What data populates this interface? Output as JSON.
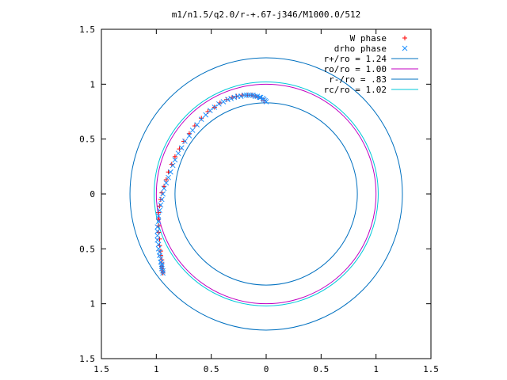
{
  "chart_data": {
    "type": "scatter",
    "title": "m1/n1.5/q2.0/r-+.67-j346/M1000.0/512",
    "xlabel": "",
    "ylabel": "",
    "xlim": [
      -1.5,
      1.5
    ],
    "ylim": [
      -1.5,
      1.5
    ],
    "x_tick_values": [
      -1.5,
      -1,
      -0.5,
      0,
      0.5,
      1,
      1.5
    ],
    "x_tick_labels": [
      "1.5",
      "1",
      "0.5",
      "0",
      "0.5",
      "1",
      "1.5"
    ],
    "y_tick_values": [
      1.5,
      1,
      0.5,
      0,
      -0.5,
      -1,
      -1.5
    ],
    "y_tick_labels": [
      "1.5",
      "1",
      "0.5",
      "0",
      "0.5",
      "1",
      "1.5"
    ],
    "grid": false,
    "legend_position": "top-right",
    "series": [
      {
        "name": "W phase",
        "kind": "points",
        "marker": "plus",
        "color": "#ff0000",
        "x": [
          -0.02,
          -0.04,
          -0.07,
          -0.1,
          -0.13,
          -0.17,
          -0.22,
          -0.27,
          -0.31,
          -0.36,
          -0.42,
          -0.47,
          -0.53,
          -0.59,
          -0.65,
          -0.7,
          -0.75,
          -0.79,
          -0.83,
          -0.86,
          -0.89,
          -0.91,
          -0.93,
          -0.95,
          -0.96,
          -0.97,
          -0.98,
          -0.98,
          -0.98,
          -0.98,
          -0.97,
          -0.97,
          -0.96,
          -0.96,
          -0.95,
          -0.95,
          -0.95,
          -0.95,
          -0.94,
          -0.94
        ],
        "y": [
          0.85,
          0.87,
          0.88,
          0.89,
          0.9,
          0.9,
          0.9,
          0.89,
          0.88,
          0.86,
          0.83,
          0.79,
          0.75,
          0.69,
          0.62,
          0.55,
          0.48,
          0.41,
          0.34,
          0.27,
          0.2,
          0.13,
          0.07,
          0.01,
          -0.05,
          -0.11,
          -0.17,
          -0.23,
          -0.29,
          -0.35,
          -0.41,
          -0.47,
          -0.52,
          -0.56,
          -0.6,
          -0.63,
          -0.66,
          -0.68,
          -0.7,
          -0.72
        ]
      },
      {
        "name": "drho phase",
        "kind": "points",
        "marker": "cross",
        "color": "#1e90ff",
        "x": [
          0,
          -0.01,
          -0.02,
          -0.03,
          -0.05,
          -0.06,
          -0.08,
          -0.1,
          -0.12,
          -0.14,
          -0.16,
          -0.18,
          -0.2,
          -0.23,
          -0.26,
          -0.29,
          -0.32,
          -0.35,
          -0.39,
          -0.43,
          -0.47,
          -0.51,
          -0.55,
          -0.59,
          -0.63,
          -0.67,
          -0.7,
          -0.74,
          -0.77,
          -0.8,
          -0.83,
          -0.85,
          -0.87,
          -0.89,
          -0.91,
          -0.93,
          -0.94,
          -0.95,
          -0.96,
          -0.97,
          -0.98,
          -0.98,
          -0.99,
          -0.99,
          -0.99,
          -0.99,
          -0.98,
          -0.98,
          -0.97,
          -0.97,
          -0.96,
          -0.96,
          -0.95,
          -0.95,
          -0.95,
          -0.94,
          -0.94
        ],
        "y": [
          0.84,
          0.85,
          0.86,
          0.87,
          0.88,
          0.88,
          0.89,
          0.89,
          0.9,
          0.9,
          0.9,
          0.9,
          0.9,
          0.89,
          0.89,
          0.88,
          0.87,
          0.86,
          0.84,
          0.82,
          0.79,
          0.76,
          0.72,
          0.68,
          0.63,
          0.58,
          0.53,
          0.48,
          0.42,
          0.37,
          0.31,
          0.26,
          0.2,
          0.15,
          0.1,
          0.05,
          0,
          -0.05,
          -0.1,
          -0.15,
          -0.2,
          -0.25,
          -0.3,
          -0.34,
          -0.38,
          -0.42,
          -0.46,
          -0.5,
          -0.53,
          -0.56,
          -0.59,
          -0.62,
          -0.64,
          -0.66,
          -0.68,
          -0.7,
          -0.72
        ]
      },
      {
        "name": "r+/ro = 1.24",
        "kind": "circle",
        "radius": 1.24,
        "color": "#0070c0"
      },
      {
        "name": "ro/ro = 1.00",
        "kind": "circle",
        "radius": 1.0,
        "color": "#c000c0"
      },
      {
        "name": "r-/ro = .83",
        "kind": "circle",
        "radius": 0.83,
        "color": "#0070c0"
      },
      {
        "name": "rc/ro = 1.02",
        "kind": "circle",
        "radius": 1.02,
        "color": "#00c8d8"
      }
    ]
  }
}
